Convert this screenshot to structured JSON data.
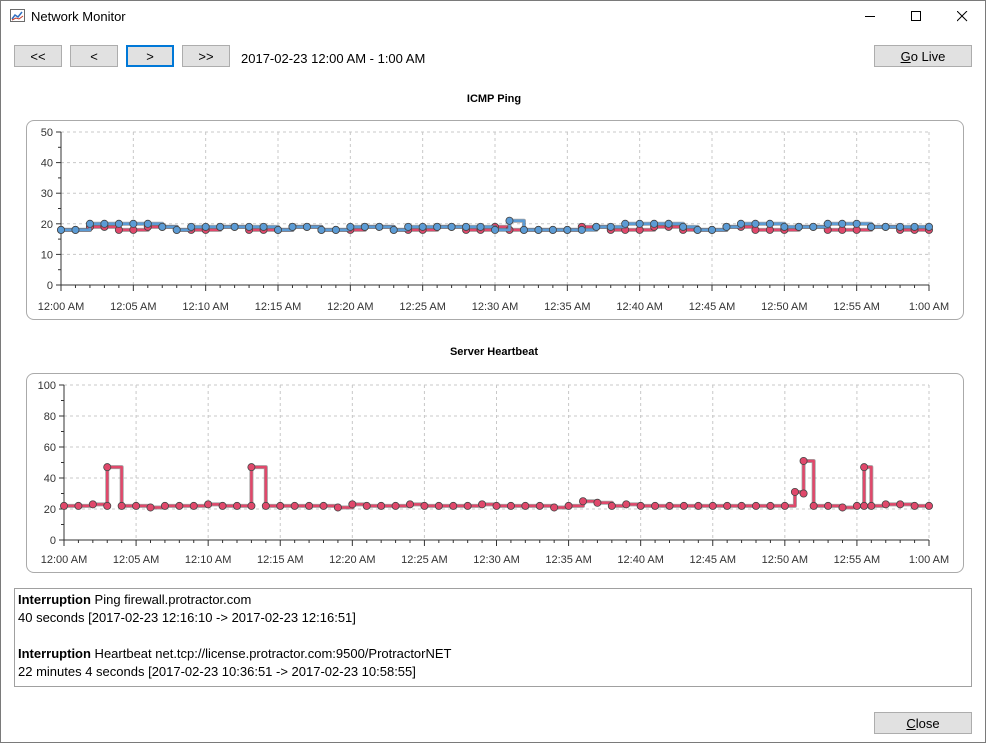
{
  "window": {
    "title": "Network Monitor"
  },
  "toolbar": {
    "first_label": "<<",
    "prev_label": "<",
    "next_label": ">",
    "last_label": ">>",
    "range_text": "2017-02-23 12:00 AM - 1:00 AM",
    "go_live_label_first": "G",
    "go_live_label_rest": "o Live"
  },
  "colors": {
    "ping_series": "#5b9bd5",
    "heartbeat_series": "#e0486b",
    "grid": "#c8c8c8"
  },
  "chart_data": [
    {
      "type": "line",
      "title": "ICMP Ping",
      "ylim": [
        0,
        50
      ],
      "yticks": [
        "0",
        "10",
        "20",
        "30",
        "40",
        "50"
      ],
      "xticks": [
        "12:00 AM",
        "12:05 AM",
        "12:10 AM",
        "12:15 AM",
        "12:20 AM",
        "12:25 AM",
        "12:30 AM",
        "12:35 AM",
        "12:40 AM",
        "12:45 AM",
        "12:50 AM",
        "12:55 AM",
        "1:00 AM"
      ],
      "grid": true,
      "series": [
        {
          "color": "#e0486b",
          "x": [
            0,
            1,
            2,
            3,
            4,
            5,
            6,
            7,
            8,
            9,
            10,
            11,
            12,
            13,
            14,
            15,
            16,
            17,
            18,
            19,
            20,
            21,
            22,
            23,
            24,
            25,
            26,
            27,
            28,
            29,
            30,
            31,
            32,
            33,
            34,
            35,
            36,
            37,
            38,
            39,
            40,
            41,
            42,
            43,
            44,
            45,
            46,
            47,
            48,
            49,
            50,
            51,
            52,
            53,
            54,
            55,
            56,
            57,
            58,
            59,
            60
          ],
          "y": [
            18,
            18,
            19,
            19,
            18,
            18,
            19,
            19,
            18,
            18,
            18,
            19,
            19,
            18,
            18,
            18,
            19,
            19,
            18,
            18,
            18,
            19,
            19,
            18,
            18,
            18,
            19,
            19,
            18,
            18,
            19,
            18,
            18,
            18,
            18,
            18,
            19,
            19,
            18,
            18,
            18,
            19,
            19,
            18,
            18,
            18,
            19,
            19,
            18,
            18,
            18,
            19,
            19,
            18,
            18,
            18,
            19,
            19,
            18,
            18,
            18
          ]
        },
        {
          "color": "#5b9bd5",
          "x": [
            0,
            1,
            2,
            3,
            4,
            5,
            6,
            7,
            8,
            9,
            10,
            11,
            12,
            13,
            14,
            15,
            16,
            17,
            18,
            19,
            20,
            21,
            22,
            23,
            24,
            25,
            26,
            27,
            28,
            29,
            30,
            31,
            32,
            33,
            34,
            35,
            36,
            37,
            38,
            39,
            40,
            41,
            42,
            43,
            44,
            45,
            46,
            47,
            48,
            49,
            50,
            51,
            52,
            53,
            54,
            55,
            56,
            57,
            58,
            59,
            60
          ],
          "y": [
            18,
            18,
            20,
            20,
            20,
            20,
            20,
            19,
            18,
            19,
            19,
            19,
            19,
            19,
            19,
            18,
            19,
            19,
            18,
            18,
            19,
            19,
            19,
            18,
            19,
            19,
            19,
            19,
            19,
            19,
            18,
            21,
            18,
            18,
            18,
            18,
            18,
            19,
            19,
            20,
            20,
            20,
            20,
            19,
            18,
            18,
            19,
            20,
            20,
            20,
            19,
            19,
            19,
            20,
            20,
            20,
            19,
            19,
            19,
            19,
            19
          ]
        }
      ]
    },
    {
      "type": "line",
      "title": "Server Heartbeat",
      "ylim": [
        0,
        100
      ],
      "yticks": [
        "0",
        "20",
        "40",
        "60",
        "80",
        "100"
      ],
      "xticks": [
        "12:00 AM",
        "12:05 AM",
        "12:10 AM",
        "12:15 AM",
        "12:20 AM",
        "12:25 AM",
        "12:30 AM",
        "12:35 AM",
        "12:40 AM",
        "12:45 AM",
        "12:50 AM",
        "12:55 AM",
        "1:00 AM"
      ],
      "grid": true,
      "series": [
        {
          "color": "#e0486b",
          "x": [
            0,
            1,
            2,
            3,
            3,
            4,
            5,
            6,
            7,
            8,
            9,
            10,
            11,
            12,
            13,
            13,
            14,
            15,
            16,
            17,
            18,
            19,
            20,
            21,
            22,
            23,
            24,
            25,
            26,
            27,
            28,
            29,
            30,
            31,
            32,
            33,
            34,
            35,
            36,
            37,
            38,
            39,
            40,
            41,
            42,
            43,
            44,
            45,
            46,
            47,
            48,
            49,
            50,
            50.7,
            51.3,
            51.3,
            52,
            53,
            54,
            55,
            55.5,
            55.5,
            56,
            57,
            58,
            59,
            60
          ],
          "y": [
            22,
            22,
            23,
            22,
            47,
            22,
            22,
            21,
            22,
            22,
            22,
            23,
            22,
            22,
            22,
            47,
            22,
            22,
            22,
            22,
            22,
            21,
            23,
            22,
            22,
            22,
            23,
            22,
            22,
            22,
            22,
            23,
            22,
            22,
            22,
            22,
            21,
            22,
            25,
            24,
            22,
            23,
            22,
            22,
            22,
            22,
            22,
            22,
            22,
            22,
            22,
            22,
            22,
            31,
            30,
            51,
            22,
            22,
            21,
            22,
            22,
            47,
            22,
            23,
            23,
            22,
            22
          ]
        }
      ]
    }
  ],
  "log": [
    {
      "label": "Interruption",
      "target": " Ping firewall.protractor.com",
      "detail": "40 seconds [2017-02-23 12:16:10 -> 2017-02-23 12:16:51]"
    },
    {
      "label": "Interruption",
      "target": " Heartbeat net.tcp://license.protractor.com:9500/ProtractorNET",
      "detail": "22 minutes 4 seconds [2017-02-23 10:36:51 -> 2017-02-23 10:58:55]"
    }
  ],
  "footer": {
    "close_label_first": "C",
    "close_label_rest": "lose"
  }
}
